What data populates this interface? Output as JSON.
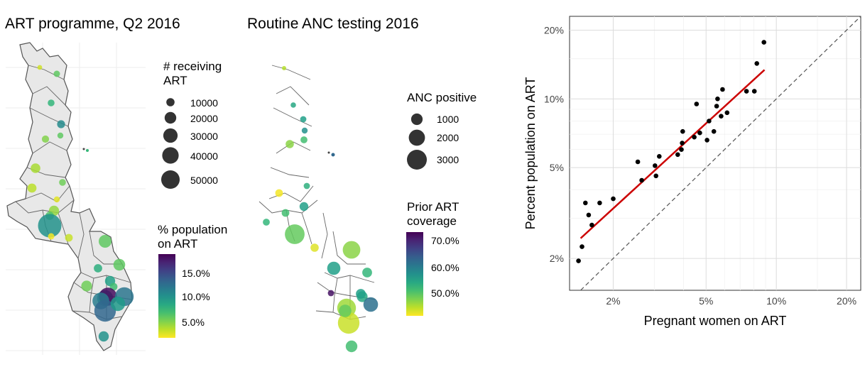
{
  "panel_art": {
    "title": "ART programme, Q2 2016",
    "size_legend": {
      "title_lines": [
        "# receiving",
        "ART"
      ],
      "labels": [
        "10000",
        "20000",
        "30000",
        "40000",
        "50000"
      ],
      "values": [
        10000,
        20000,
        30000,
        40000,
        50000
      ]
    },
    "color_legend": {
      "title_lines": [
        "% population",
        "on ART"
      ],
      "labels": [
        "15.0%",
        "10.0%",
        "5.0%"
      ],
      "values": [
        15.0,
        10.0,
        5.0
      ],
      "range": [
        1.8,
        18.5
      ]
    },
    "districts": [
      {
        "pct": 3.0,
        "count": 2000
      },
      {
        "pct": 6.0,
        "count": 3500
      },
      {
        "pct": 7.5,
        "count": 4000
      },
      {
        "pct": 5.0,
        "count": 4500
      },
      {
        "pct": 10.5,
        "count": 5500
      },
      {
        "pct": 6.0,
        "count": 3000
      },
      {
        "pct": 3.5,
        "count": 7000
      },
      {
        "pct": 4.5,
        "count": 9000
      },
      {
        "pct": 5.5,
        "count": 4000
      },
      {
        "pct": 2.5,
        "count": 3000
      },
      {
        "pct": 3.2,
        "count": 5000
      },
      {
        "pct": 6.5,
        "count": 6000
      },
      {
        "pct": 10.0,
        "count": 47000
      },
      {
        "pct": 4.0,
        "count": 8000
      },
      {
        "pct": 2.0,
        "count": 3500
      },
      {
        "pct": 6.0,
        "count": 14000
      },
      {
        "pct": 6.0,
        "count": 12000
      },
      {
        "pct": 8.0,
        "count": 6000
      },
      {
        "pct": 5.5,
        "count": 10000
      },
      {
        "pct": 9.0,
        "count": 9000
      },
      {
        "pct": 7.0,
        "count": 5000
      },
      {
        "pct": 11.0,
        "count": 22000
      },
      {
        "pct": 18.0,
        "count": 28000
      },
      {
        "pct": 12.0,
        "count": 30000
      },
      {
        "pct": 11.5,
        "count": 24000
      },
      {
        "pct": 13.0,
        "count": 40000
      },
      {
        "pct": 9.5,
        "count": 18000
      },
      {
        "pct": 10.0,
        "count": 9000
      }
    ]
  },
  "panel_anc": {
    "title": "Routine ANC testing 2016",
    "size_legend": {
      "title_lines": [
        "ANC positive"
      ],
      "labels": [
        "1000",
        "2000",
        "3000"
      ],
      "values": [
        1000,
        2000,
        3000
      ]
    },
    "color_legend": {
      "title_lines": [
        "Prior ART",
        "coverage"
      ],
      "labels": [
        "70.0%",
        "60.0%",
        "50.0%"
      ],
      "values": [
        70.0,
        60.0,
        50.0
      ],
      "range": [
        42.5,
        73.5
      ]
    },
    "districts": [
      {
        "pct": 46,
        "count": 50
      },
      {
        "pct": 55,
        "count": 150
      },
      {
        "pct": 56,
        "count": 200
      },
      {
        "pct": 58,
        "count": 180
      },
      {
        "pct": 52,
        "count": 250
      },
      {
        "pct": 48,
        "count": 350
      },
      {
        "pct": 54,
        "count": 200
      },
      {
        "pct": 43,
        "count": 300
      },
      {
        "pct": 53,
        "count": 250
      },
      {
        "pct": 52,
        "count": 300
      },
      {
        "pct": 56,
        "count": 400
      },
      {
        "pct": 50,
        "count": 2000
      },
      {
        "pct": 44,
        "count": 350
      },
      {
        "pct": 48,
        "count": 1600
      },
      {
        "pct": 53,
        "count": 500
      },
      {
        "pct": 56,
        "count": 900
      },
      {
        "pct": 72,
        "count": 200
      },
      {
        "pct": 55,
        "count": 600
      },
      {
        "pct": 47,
        "count": 1800
      },
      {
        "pct": 45,
        "count": 2400
      },
      {
        "pct": 62,
        "count": 1100
      },
      {
        "pct": 50,
        "count": 800
      },
      {
        "pct": 56,
        "count": 500
      },
      {
        "pct": 52,
        "count": 700
      }
    ]
  },
  "chart_data": {
    "type": "scatter",
    "xlabel": "Pregnant women on ART",
    "ylabel": "Percent population on ART",
    "x_scale": "log",
    "y_scale": "log",
    "xlim": [
      1.3,
      23
    ],
    "ylim": [
      1.45,
      23
    ],
    "x_ticks": [
      2,
      5,
      10,
      20
    ],
    "x_tick_labels": [
      "2%",
      "5%",
      "10%",
      "20%"
    ],
    "y_ticks": [
      2,
      5,
      10,
      20
    ],
    "y_tick_labels": [
      "2%",
      "5%",
      "10%",
      "20%"
    ],
    "grid": true,
    "identity_line": {
      "style": "dashed",
      "color": "#555555"
    },
    "fit_line": {
      "color": "#cc0000",
      "x": [
        1.45,
        8.9
      ],
      "y": [
        2.45,
        13.4
      ]
    },
    "points": [
      [
        1.42,
        1.95
      ],
      [
        1.47,
        2.25
      ],
      [
        1.52,
        3.5
      ],
      [
        1.57,
        3.1
      ],
      [
        1.62,
        2.8
      ],
      [
        1.75,
        3.5
      ],
      [
        2.0,
        3.65
      ],
      [
        2.55,
        5.3
      ],
      [
        2.65,
        4.4
      ],
      [
        3.02,
        5.1
      ],
      [
        3.05,
        4.6
      ],
      [
        3.15,
        5.6
      ],
      [
        3.78,
        5.7
      ],
      [
        3.92,
        6.0
      ],
      [
        3.95,
        6.4
      ],
      [
        3.97,
        7.2
      ],
      [
        4.45,
        6.8
      ],
      [
        4.55,
        9.5
      ],
      [
        4.7,
        7.1
      ],
      [
        5.05,
        6.6
      ],
      [
        5.15,
        8.0
      ],
      [
        5.4,
        7.2
      ],
      [
        5.55,
        9.3
      ],
      [
        5.6,
        10.0
      ],
      [
        5.8,
        8.4
      ],
      [
        5.88,
        11.0
      ],
      [
        6.15,
        8.7
      ],
      [
        7.45,
        10.8
      ],
      [
        8.05,
        10.8
      ],
      [
        8.25,
        14.3
      ],
      [
        8.85,
        17.7
      ]
    ]
  }
}
